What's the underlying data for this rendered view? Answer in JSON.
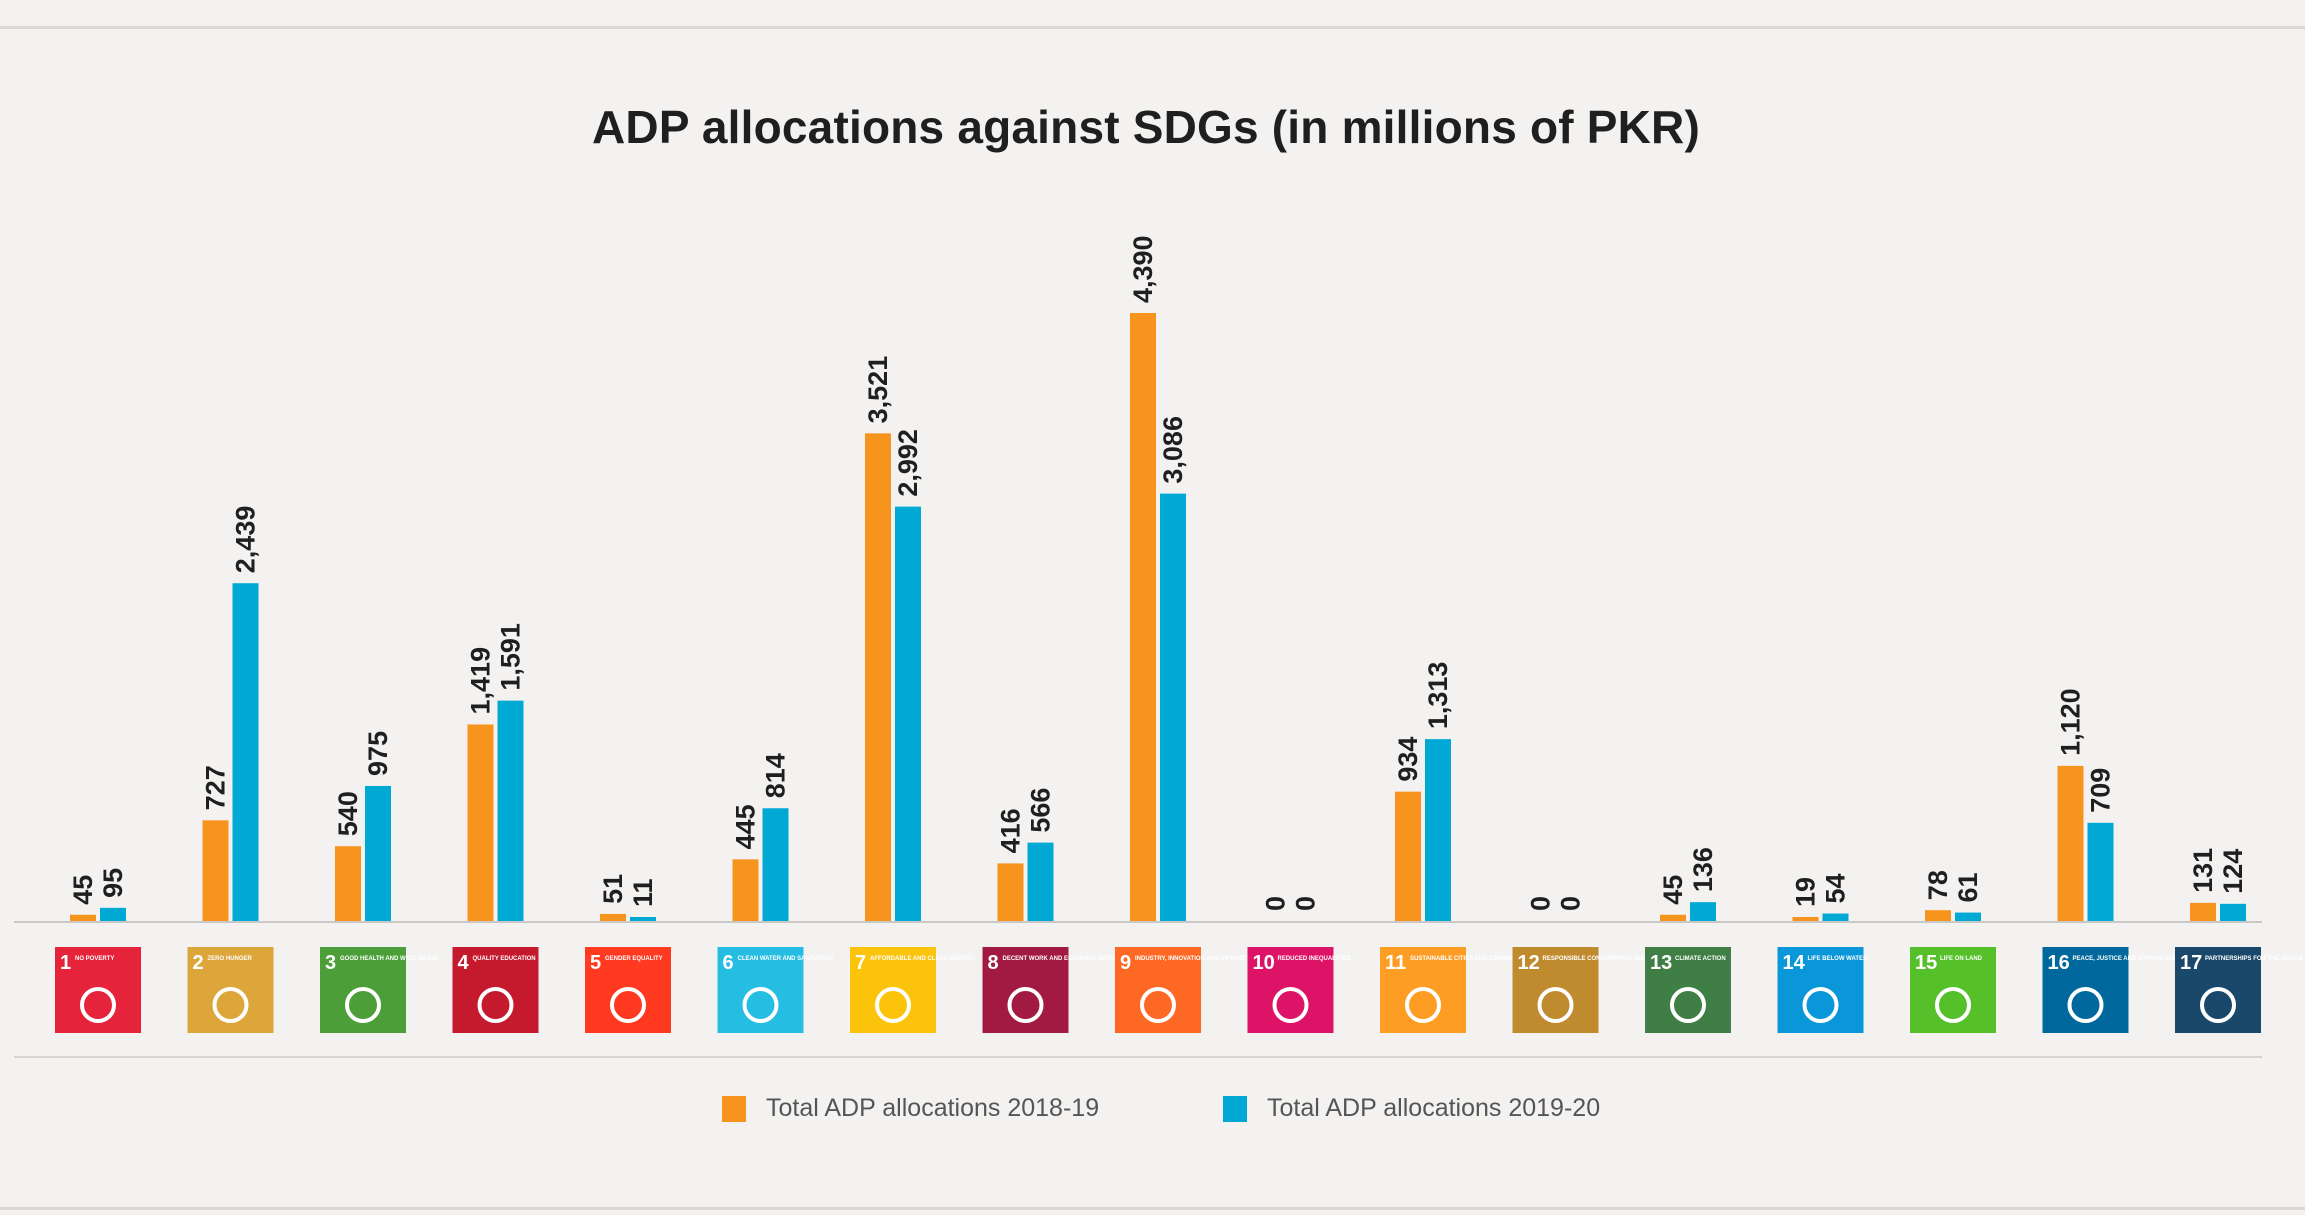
{
  "chart_data": {
    "type": "bar",
    "title": "ADP allocations against SDGs (in millions of PKR)",
    "categories": [
      "1",
      "2",
      "3",
      "4",
      "5",
      "6",
      "7",
      "8",
      "9",
      "10",
      "11",
      "12",
      "13",
      "14",
      "15",
      "16",
      "17"
    ],
    "category_icons": [
      {
        "number": "1",
        "label": "NO POVERTY",
        "color": "#e5243b",
        "icon": "people-family-icon"
      },
      {
        "number": "2",
        "label": "ZERO HUNGER",
        "color": "#dda63a",
        "icon": "food-bowl-icon"
      },
      {
        "number": "3",
        "label": "GOOD HEALTH AND WELL-BEING",
        "color": "#4c9f38",
        "icon": "heartbeat-icon"
      },
      {
        "number": "4",
        "label": "QUALITY EDUCATION",
        "color": "#c5192d",
        "icon": "book-pencil-icon"
      },
      {
        "number": "5",
        "label": "GENDER EQUALITY",
        "color": "#ff3a21",
        "icon": "gender-symbol-icon"
      },
      {
        "number": "6",
        "label": "CLEAN WATER AND SANITATION",
        "color": "#26bde2",
        "icon": "water-glass-icon"
      },
      {
        "number": "7",
        "label": "AFFORDABLE AND CLEAN ENERGY",
        "color": "#fcc30b",
        "icon": "sun-icon"
      },
      {
        "number": "8",
        "label": "DECENT WORK AND ECONOMIC GROWTH",
        "color": "#a21942",
        "icon": "growth-chart-icon"
      },
      {
        "number": "9",
        "label": "INDUSTRY, INNOVATION AND INFRASTRUCTURE",
        "color": "#fd6925",
        "icon": "cubes-icon"
      },
      {
        "number": "10",
        "label": "REDUCED INEQUALITIES",
        "color": "#dd1367",
        "icon": "equal-arrows-icon"
      },
      {
        "number": "11",
        "label": "SUSTAINABLE CITIES AND COMMUNITIES",
        "color": "#fd9d24",
        "icon": "buildings-icon"
      },
      {
        "number": "12",
        "label": "RESPONSIBLE CONSUMPTION AND PRODUCTION",
        "color": "#bf8b2e",
        "icon": "infinity-icon"
      },
      {
        "number": "13",
        "label": "CLIMATE ACTION",
        "color": "#3f7e44",
        "icon": "eye-globe-icon"
      },
      {
        "number": "14",
        "label": "LIFE BELOW WATER",
        "color": "#0a97d9",
        "icon": "fish-icon"
      },
      {
        "number": "15",
        "label": "LIFE ON LAND",
        "color": "#56c02b",
        "icon": "tree-icon"
      },
      {
        "number": "16",
        "label": "PEACE, JUSTICE AND STRONG INSTITUTIONS",
        "color": "#00689d",
        "icon": "dove-icon"
      },
      {
        "number": "17",
        "label": "PARTNERSHIPS FOR THE GOALS",
        "color": "#19486a",
        "icon": "flower-rings-icon"
      }
    ],
    "series": [
      {
        "name": "Total ADP allocations 2018-19",
        "color": "#f7941d",
        "values": [
          45,
          727,
          540,
          1419,
          51,
          445,
          3521,
          416,
          4390,
          0,
          934,
          0,
          45,
          19,
          78,
          1120,
          131
        ],
        "labels": [
          "45",
          "727",
          "540",
          "1,419",
          "51",
          "445",
          "3,521",
          "416",
          "4,390",
          "0",
          "934",
          "0",
          "45",
          "19",
          "78",
          "1,120",
          "131"
        ]
      },
      {
        "name": "Total ADP allocations 2019-20",
        "color": "#00a9d4",
        "values": [
          95,
          2439,
          975,
          1591,
          11,
          814,
          2992,
          566,
          3086,
          0,
          1313,
          0,
          136,
          54,
          61,
          709,
          124
        ],
        "labels": [
          "95",
          "2,439",
          "975",
          "1,591",
          "11",
          "814",
          "2,992",
          "566",
          "3,086",
          "0",
          "1,313",
          "0",
          "136",
          "54",
          "61",
          "709",
          "124"
        ]
      }
    ],
    "ylim": [
      0,
      4390
    ],
    "legend": "bottom-center",
    "grid": false
  }
}
